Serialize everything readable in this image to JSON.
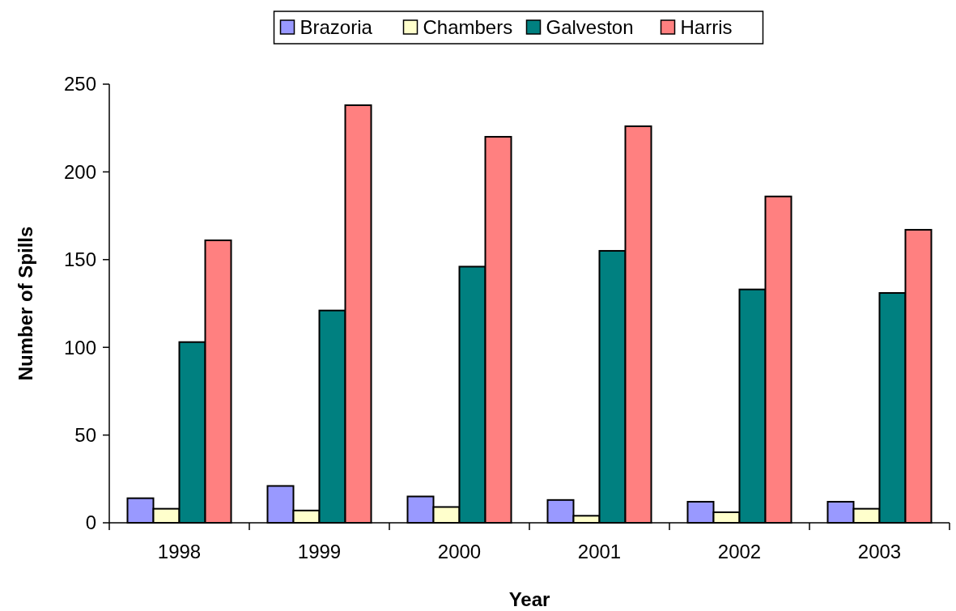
{
  "chart_data": {
    "type": "bar",
    "xlabel": "Year",
    "ylabel": "Number of Spills",
    "categories": [
      "1998",
      "1999",
      "2000",
      "2001",
      "2002",
      "2003"
    ],
    "ylim": [
      0,
      250
    ],
    "yticks": [
      0,
      50,
      100,
      150,
      200,
      250
    ],
    "legend": "top",
    "grid": false,
    "series": [
      {
        "name": "Brazoria",
        "color": "#9999ff",
        "values": [
          14,
          21,
          15,
          13,
          12,
          12
        ]
      },
      {
        "name": "Chambers",
        "color": "#ffffcc",
        "values": [
          8,
          7,
          9,
          4,
          6,
          8
        ]
      },
      {
        "name": "Galveston",
        "color": "#008080",
        "values": [
          103,
          121,
          146,
          155,
          133,
          131
        ]
      },
      {
        "name": "Harris",
        "color": "#ff8080",
        "values": [
          161,
          238,
          220,
          226,
          186,
          167
        ]
      }
    ]
  }
}
